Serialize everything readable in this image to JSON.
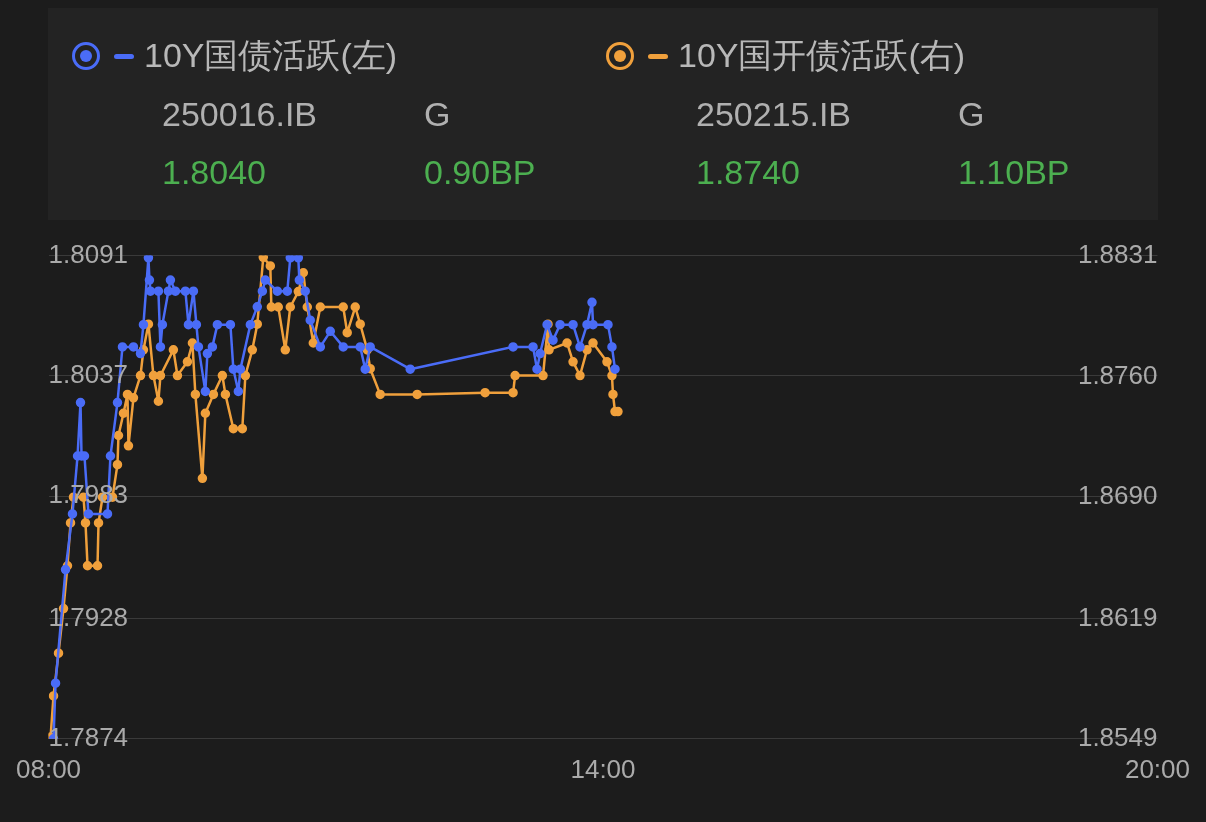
{
  "chart_data": {
    "type": "line",
    "legend": "top",
    "grid": "y",
    "marker": "circle",
    "line_style": "solid",
    "xlim": [
      8,
      20
    ],
    "xticks": [
      {
        "value": 8,
        "label": "08:00"
      },
      {
        "value": 14,
        "label": "14:00"
      },
      {
        "value": 20,
        "label": "20:00"
      }
    ],
    "ylim": [
      1.7874,
      1.8091
    ],
    "yticks": [
      1.7874,
      1.7928,
      1.7983,
      1.8037,
      1.8091
    ],
    "y2lim": [
      1.8549,
      1.8831
    ],
    "y2ticks": [
      1.8549,
      1.8619,
      {
        "value": 1.869,
        "label": "1.8690"
      },
      {
        "value": 1.876,
        "label": "1.8760"
      },
      1.8831
    ],
    "annotations": [
      "250016.IB",
      "G",
      "1.8040",
      "0.90BP",
      "250215.IB",
      "G",
      "1.8740",
      "1.10BP"
    ],
    "series": [
      {
        "name": "10Y国债活跃(左)",
        "color": "#4a6cf7",
        "x": [
          8.054,
          8.076,
          8.184,
          8.259,
          8.314,
          8.346,
          8.357,
          8.389,
          8.432,
          8.638,
          8.67,
          8.746,
          8.8,
          8.919,
          8.995,
          9.027,
          9.081,
          9.092,
          9.103,
          9.189,
          9.211,
          9.232,
          9.297,
          9.319,
          9.373,
          9.481,
          9.514,
          9.568,
          9.6,
          9.622,
          9.697,
          9.719,
          9.773,
          9.827,
          9.968,
          10,
          10.054,
          10.076,
          10.184,
          10.259,
          10.314,
          10.346,
          10.476,
          10.584,
          10.616,
          10.703,
          10.714,
          10.778,
          10.832,
          10.941,
          11.049,
          11.189,
          11.373,
          11.427,
          11.481,
          11.914,
          13.027,
          13.243,
          13.286,
          13.319,
          13.395,
          13.459,
          13.535,
          13.676,
          13.751,
          13.827,
          13.881,
          13.892,
          14.054,
          14.097,
          14.13
        ],
        "values": [
          1.7874,
          1.7899,
          1.795,
          1.7975,
          1.8001,
          1.8025,
          1.8001,
          1.8001,
          1.7975,
          1.7975,
          1.8001,
          1.8025,
          1.805,
          1.805,
          1.8047,
          1.806,
          1.809,
          1.808,
          1.8075,
          1.8075,
          1.805,
          1.806,
          1.8075,
          1.808,
          1.8075,
          1.8075,
          1.806,
          1.8075,
          1.806,
          1.805,
          1.803,
          1.8047,
          1.805,
          1.806,
          1.806,
          1.804,
          1.803,
          1.804,
          1.806,
          1.8068,
          1.8075,
          1.808,
          1.8075,
          1.8075,
          1.809,
          1.809,
          1.808,
          1.8075,
          1.8062,
          1.805,
          1.8057,
          1.805,
          1.805,
          1.804,
          1.805,
          1.804,
          1.805,
          1.805,
          1.804,
          1.8047,
          1.806,
          1.8053,
          1.806,
          1.806,
          1.805,
          1.806,
          1.807,
          1.806,
          1.806,
          1.805,
          1.804
        ]
      },
      {
        "name": "10Y国开债活跃(右)",
        "color": "#f0a03c",
        "axis": "y2",
        "x": [
          8.022,
          8.054,
          8.108,
          8.162,
          8.205,
          8.238,
          8.27,
          8.378,
          8.4,
          8.422,
          8.53,
          8.541,
          8.584,
          8.692,
          8.746,
          8.757,
          8.811,
          8.854,
          8.865,
          8.919,
          8.995,
          9.027,
          9.081,
          9.135,
          9.189,
          9.211,
          9.351,
          9.395,
          9.503,
          9.557,
          9.589,
          9.665,
          9.697,
          9.784,
          9.881,
          9.914,
          10,
          10.097,
          10.13,
          10.205,
          10.259,
          10.324,
          10.4,
          10.411,
          10.486,
          10.562,
          10.616,
          10.703,
          10.757,
          10.8,
          10.865,
          10.941,
          11.189,
          11.232,
          11.319,
          11.373,
          11.449,
          11.481,
          11.589,
          11.989,
          12.724,
          13.027,
          13.049,
          13.351,
          13.405,
          13.416,
          13.611,
          13.676,
          13.751,
          13.827,
          13.892,
          14.043,
          14.097,
          14.108,
          14.13,
          14.162
        ],
        "values": [
          1.855,
          1.8574,
          1.8599,
          1.8625,
          1.865,
          1.8675,
          1.869,
          1.869,
          1.8675,
          1.865,
          1.865,
          1.8675,
          1.869,
          1.869,
          1.8709,
          1.8726,
          1.8739,
          1.875,
          1.872,
          1.8748,
          1.8761,
          1.8776,
          1.8791,
          1.8761,
          1.8746,
          1.8761,
          1.8776,
          1.8761,
          1.8769,
          1.878,
          1.875,
          1.8701,
          1.8739,
          1.875,
          1.8761,
          1.875,
          1.873,
          1.873,
          1.8761,
          1.8776,
          1.8791,
          1.883,
          1.8825,
          1.8801,
          1.8801,
          1.8776,
          1.8801,
          1.881,
          1.8821,
          1.8801,
          1.878,
          1.8801,
          1.8801,
          1.8786,
          1.8801,
          1.8791,
          1.8776,
          1.8765,
          1.875,
          1.875,
          1.8751,
          1.8751,
          1.8761,
          1.8761,
          1.8791,
          1.8776,
          1.878,
          1.8769,
          1.8761,
          1.8776,
          1.878,
          1.8769,
          1.8761,
          1.875,
          1.874,
          1.874
        ]
      }
    ]
  }
}
